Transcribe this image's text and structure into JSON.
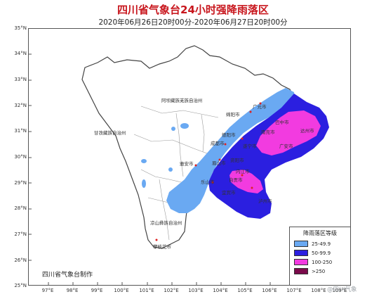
{
  "title": "四川省气象台24小时强降雨落区",
  "subtitle": "2020年06月26日20时00分-2020年06月27日20时00分",
  "lat_labels": [
    "35°N",
    "34°N",
    "33°N",
    "32°N",
    "31°N",
    "30°N",
    "29°N",
    "28°N",
    "27°N",
    "26°N",
    "25°N"
  ],
  "lon_labels": [
    "97°E",
    "98°E",
    "99°E",
    "100°E",
    "101°E",
    "102°E",
    "103°E",
    "104°E",
    "105°E",
    "106°E",
    "107°E",
    "108°E",
    "109°E"
  ],
  "region_labels": {
    "aba": "阿坝藏族羌族自治州",
    "ganzi": "甘孜藏族自治州",
    "liangshan": "凉山彝族自治州",
    "guangyuan": "广元市",
    "mianyang": "绵阳市",
    "bazhong": "巴中市",
    "dazhou": "达州市",
    "deyang": "德阳市",
    "chengdu": "成都市",
    "suining": "遂宁市",
    "nanchong": "南充市",
    "guangan": "广安市",
    "yaan": "雅安市",
    "meishan": "眉山市",
    "ziyang": "资阳市",
    "leshan": "乐山市",
    "neijiang": "内江市",
    "zigong": "自贡市",
    "yibin": "宜宾市",
    "luzhou": "泸州市",
    "panzhihua": "攀枝花市"
  },
  "legend": {
    "title": "降雨落区等级",
    "items": [
      {
        "label": "25-49.9",
        "color": "#6aa9f2"
      },
      {
        "label": "50-99.9",
        "color": "#2b1fe0"
      },
      {
        "label": "100-250",
        "color": "#f23be0"
      },
      {
        "label": ">250",
        "color": "#7a0a4a"
      }
    ]
  },
  "maker": "四川省气象台制作",
  "watermark": "@四川气象",
  "colors": {
    "title": "#c8161d",
    "frame": "#555555"
  }
}
